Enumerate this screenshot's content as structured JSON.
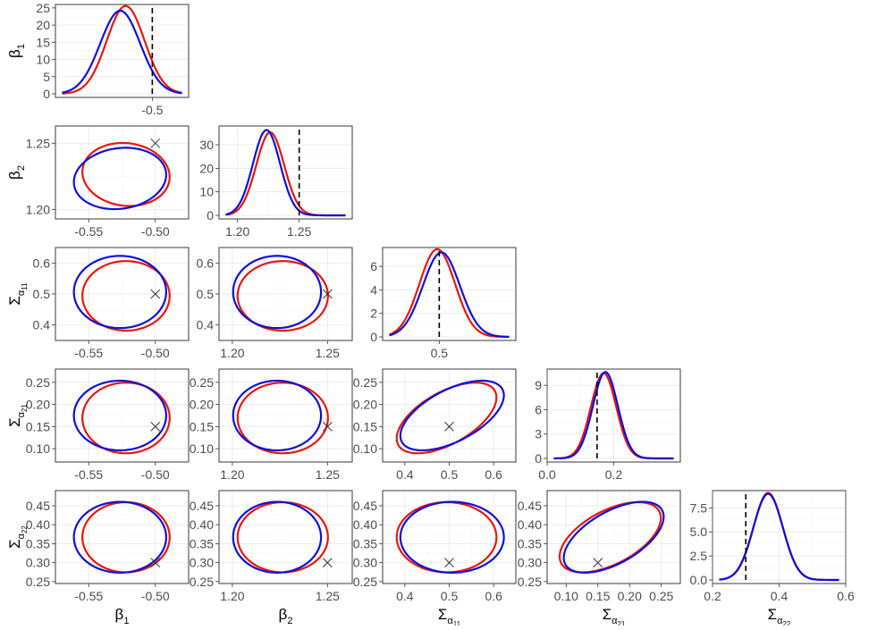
{
  "chart_data": {
    "type": "pairs",
    "parameters": [
      {
        "key": "beta1",
        "base": "β",
        "sub": "1"
      },
      {
        "key": "beta2",
        "base": "β",
        "sub": "2"
      },
      {
        "key": "sigma11",
        "base": "Σ",
        "sub": "α",
        "sub2": "11"
      },
      {
        "key": "sigma21",
        "base": "Σ",
        "sub": "α",
        "sub2": "21"
      },
      {
        "key": "sigma22",
        "base": "Σ",
        "sub": "α",
        "sub2": "22"
      }
    ],
    "true_values": {
      "beta1": -0.5,
      "beta2": 1.25,
      "sigma11": 0.5,
      "sigma21": 0.15,
      "sigma22": 0.3
    },
    "ranges": {
      "beta1": [
        -0.575,
        -0.475
      ],
      "beta2": [
        1.193,
        1.263
      ],
      "sigma11": [
        0.35,
        0.65
      ],
      "sigma21": [
        0.07,
        0.28
      ],
      "sigma22": [
        0.245,
        0.49
      ]
    },
    "density_ranges": {
      "beta1": [
        -0.58,
        -0.47
      ],
      "beta2": [
        1.185,
        1.293
      ],
      "sigma11": [
        0.33,
        0.73
      ],
      "sigma21": [
        0.0,
        0.4
      ],
      "sigma22": [
        0.2,
        0.6
      ]
    },
    "ticks": {
      "beta1": {
        "values": [
          -0.55,
          -0.5
        ],
        "labels": [
          "-0.55",
          "-0.50"
        ]
      },
      "beta2": {
        "values": [
          1.2,
          1.25
        ],
        "labels": [
          "1.20",
          "1.25"
        ]
      },
      "sigma11": {
        "values": [
          0.4,
          0.5,
          0.6
        ],
        "labels": [
          "0.4",
          "0.5",
          "0.6"
        ]
      },
      "sigma21": {
        "values": [
          0.1,
          0.15,
          0.2,
          0.25
        ],
        "labels": [
          "0.10",
          "0.15",
          "0.20",
          "0.25"
        ]
      },
      "sigma22": {
        "values": [
          0.25,
          0.3,
          0.35,
          0.4,
          0.45
        ],
        "labels": [
          "0.25",
          "0.30",
          "0.35",
          "0.40",
          "0.45"
        ]
      }
    },
    "sigma11_y_ticks": {
      "values": [
        0.4,
        0.5,
        0.6
      ],
      "labels": [
        "0.4",
        "0.5",
        "0.6"
      ]
    },
    "density_x_ticks": {
      "beta1": {
        "values": [
          -0.5
        ],
        "labels": [
          "-0.5"
        ]
      },
      "beta2": {
        "values": [
          1.2,
          1.25
        ],
        "labels": [
          "1.20",
          "1.25"
        ]
      },
      "sigma11": {
        "values": [
          0.5
        ],
        "labels": [
          "0.5"
        ]
      },
      "sigma21": {
        "values": [
          0.0,
          0.2
        ],
        "labels": [
          "0.0",
          "0.2"
        ]
      },
      "sigma22": {
        "values": [
          0.2,
          0.4,
          0.6
        ],
        "labels": [
          "0.2",
          "0.4",
          "0.6"
        ]
      }
    },
    "density_y_ticks": {
      "beta1": {
        "values": [
          0,
          5,
          10,
          15,
          20,
          25
        ],
        "labels": [
          "0",
          "5",
          "10",
          "15",
          "20",
          "25"
        ],
        "ymax": 26
      },
      "beta2": {
        "values": [
          0,
          10,
          20,
          30
        ],
        "labels": [
          "0",
          "10",
          "20",
          "30"
        ],
        "ymax": 38
      },
      "sigma11": {
        "values": [
          0,
          2,
          4,
          6
        ],
        "labels": [
          "0",
          "2",
          "4",
          "6"
        ],
        "ymax": 7.6
      },
      "sigma21": {
        "values": [
          0,
          3,
          6,
          9
        ],
        "labels": [
          "0",
          "3",
          "6",
          "9"
        ],
        "ymax": 11
      },
      "sigma22": {
        "values": [
          0.0,
          2.5,
          5.0,
          7.5
        ],
        "labels": [
          "0.0",
          "2.5",
          "5.0",
          "7.5"
        ],
        "ymax": 9.3
      }
    },
    "series": [
      {
        "color": "#e8170a",
        "means": {
          "beta1": -0.522,
          "beta2": 1.2265,
          "sigma11": 0.494,
          "sigma21": 0.1695,
          "sigma22": 0.367
        },
        "sds": {
          "beta1": 0.0156,
          "beta2": 0.0113,
          "sigma11": 0.0535,
          "sigma21": 0.038,
          "sigma22": 0.044
        },
        "correlations": {
          "sigma11|sigma21": 0.58,
          "sigma21|sigma22": 0.55,
          "beta1|beta2": -0.08
        }
      },
      {
        "color": "#1010d8",
        "means": {
          "beta1": -0.5265,
          "beta2": 1.2235,
          "sigma11": 0.5065,
          "sigma21": 0.175,
          "sigma22": 0.367
        },
        "sds": {
          "beta1": 0.0165,
          "beta2": 0.011,
          "sigma11": 0.0555,
          "sigma21": 0.0375,
          "sigma22": 0.0445
        },
        "correlations": {
          "sigma11|sigma21": 0.58,
          "sigma21|sigma22": 0.58,
          "beta1|beta2": 0.12
        }
      }
    ],
    "contour_scale": 2.1,
    "grid": true
  }
}
